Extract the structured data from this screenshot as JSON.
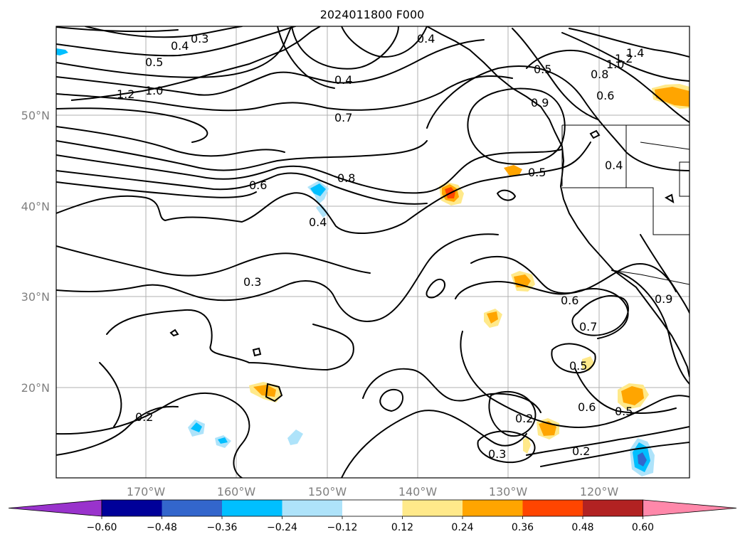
{
  "map": {
    "title": "2024011800 F000",
    "longitude_labels": [
      "170°W",
      "160°W",
      "150°W",
      "140°W",
      "130°W",
      "120°W"
    ],
    "latitude_labels": [
      "50°N",
      "40°N",
      "30°N",
      "20°N"
    ],
    "contour_labels": [
      "0.3",
      "0.4",
      "0.5",
      "1.2",
      "1.0",
      "0.4",
      "0.7",
      "0.4",
      "0.5",
      "1.4",
      "1.2",
      "1.0",
      "0.8",
      "0.6",
      "0.9",
      "0.6",
      "0.8",
      "0.5",
      "0.4",
      "0.4",
      "0.3",
      "0.6",
      "0.7",
      "0.5",
      "0.6",
      "0.5",
      "0.2",
      "0.3",
      "0.2",
      "0.2",
      "0.9"
    ],
    "colorbar": {
      "tick_labels": [
        "−0.60",
        "−0.48",
        "−0.36",
        "−0.24",
        "−0.12",
        "0.12",
        "0.24",
        "0.36",
        "0.48",
        "0.60"
      ],
      "colors": [
        "#9933cc",
        "#000099",
        "#3366cc",
        "#00bfff",
        "#aee3fa",
        "#ffffff",
        "#ffe98a",
        "#ffa500",
        "#ff4500",
        "#b22222",
        "#ff88aa"
      ]
    }
  }
}
